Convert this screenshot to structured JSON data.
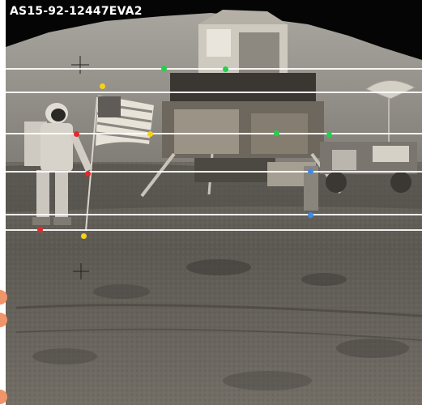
{
  "photo": {
    "title": "AS15-92-12447EVA2"
  },
  "colors": {
    "red_marker": "#e8262a",
    "yellow_marker": "#f5d21a",
    "green_marker": "#22d14a",
    "blue_marker": "#3c8be6",
    "handle": "#f0946a",
    "guide_line": "#ffffff"
  },
  "icons": {
    "handles": "circle-handle-icon"
  }
}
